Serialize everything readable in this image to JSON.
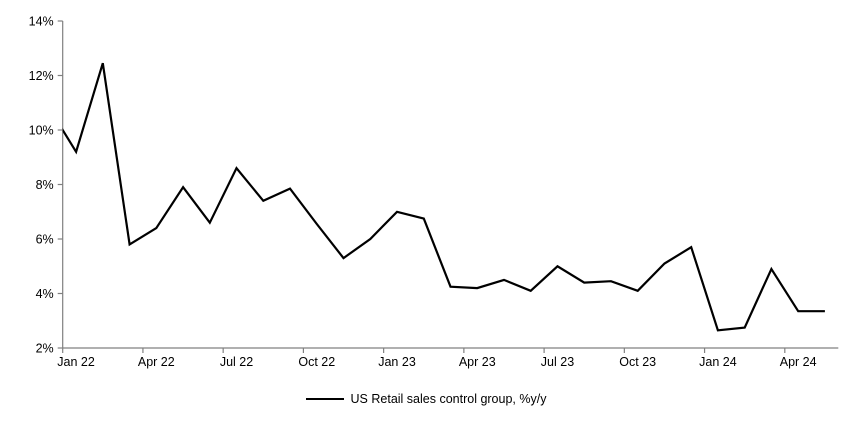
{
  "chart_data": {
    "type": "line",
    "title": "",
    "legend_position": "bottom",
    "grid": false,
    "axis_color": "#808080",
    "line_color": "#000000",
    "ylim": [
      2,
      14
    ],
    "ytick_step": 2,
    "ytick_labels": [
      "2%",
      "4%",
      "6%",
      "8%",
      "10%",
      "12%",
      "14%"
    ],
    "xtick_labels": [
      "Jan 22",
      "Apr 22",
      "Jul 22",
      "Oct 22",
      "Jan 23",
      "Apr 23",
      "Jul 23",
      "Oct 23",
      "Jan 24",
      "Apr 24"
    ],
    "x": [
      "Dec 21",
      "Jan 22",
      "Feb 22",
      "Mar 22",
      "Apr 22",
      "May 22",
      "Jun 22",
      "Jul 22",
      "Aug 22",
      "Sep 22",
      "Oct 22",
      "Nov 22",
      "Dec 22",
      "Jan 23",
      "Feb 23",
      "Mar 23",
      "Apr 23",
      "May 23",
      "Jun 23",
      "Jul 23",
      "Aug 23",
      "Sep 23",
      "Oct 23",
      "Nov 23",
      "Dec 23",
      "Jan 24",
      "Feb 24",
      "Mar 24",
      "Apr 24",
      "May 24"
    ],
    "series": [
      {
        "name": "US Retail sales control group, %y/y",
        "color": "#000000",
        "values": [
          10.8,
          9.2,
          12.45,
          5.8,
          6.4,
          7.9,
          6.6,
          8.6,
          7.4,
          7.85,
          6.55,
          5.3,
          6.0,
          7.0,
          6.75,
          4.25,
          4.2,
          4.5,
          4.1,
          5.0,
          4.4,
          4.45,
          4.1,
          5.1,
          5.7,
          2.65,
          2.75,
          4.9,
          3.35,
          3.35
        ]
      }
    ],
    "note": "First point (Dec 21) lies left of the plot area; the line is clipped at the y-axis."
  }
}
